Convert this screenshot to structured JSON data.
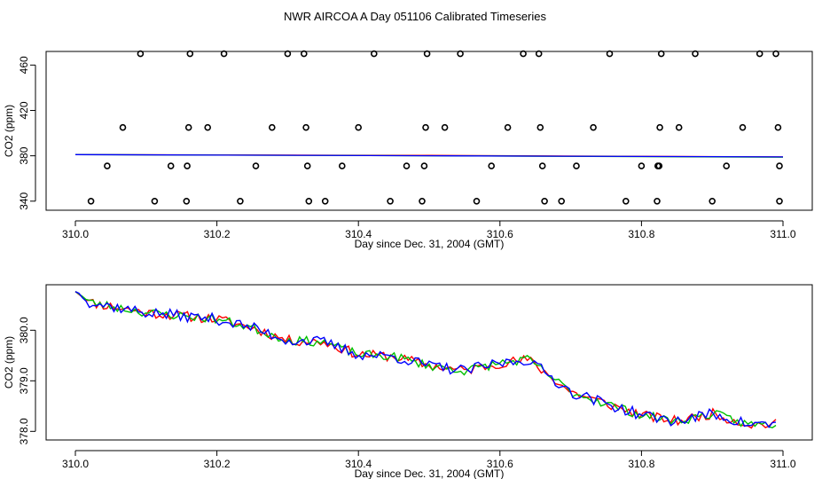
{
  "title": "NWR AIRCOA A  Day 051106  Calibrated Timeseries",
  "colors": {
    "red": "#ff0000",
    "green": "#00c000",
    "blue": "#0000ff",
    "black": "#000000"
  },
  "chart_data": [
    {
      "type": "scatter",
      "xlabel": "Day since Dec. 31, 2004 (GMT)",
      "ylabel": "CO2 (ppm)",
      "xlim": [
        310.0,
        311.0
      ],
      "ylim": [
        332,
        472
      ],
      "xticks": [
        310.0,
        310.2,
        310.4,
        310.6,
        310.8,
        311.0
      ],
      "xtick_labels": [
        "310.0",
        "310.2",
        "310.4",
        "310.6",
        "310.8",
        "311.0"
      ],
      "yticks": [
        340,
        380,
        420,
        460
      ],
      "ytick_labels": [
        "340",
        "380",
        "420",
        "460"
      ],
      "points": [
        [
          310.092,
          470
        ],
        [
          310.162,
          470
        ],
        [
          310.21,
          470
        ],
        [
          310.3,
          470
        ],
        [
          310.323,
          470
        ],
        [
          310.422,
          470
        ],
        [
          310.497,
          470
        ],
        [
          310.544,
          470
        ],
        [
          310.633,
          470
        ],
        [
          310.655,
          470
        ],
        [
          310.755,
          470
        ],
        [
          310.828,
          470
        ],
        [
          310.876,
          470
        ],
        [
          310.967,
          470
        ],
        [
          310.99,
          470
        ],
        [
          310.067,
          405
        ],
        [
          310.16,
          405
        ],
        [
          310.187,
          405
        ],
        [
          310.278,
          405
        ],
        [
          310.326,
          405
        ],
        [
          310.4,
          405
        ],
        [
          310.495,
          405
        ],
        [
          310.522,
          405
        ],
        [
          310.611,
          405
        ],
        [
          310.657,
          405
        ],
        [
          310.732,
          405
        ],
        [
          310.826,
          405
        ],
        [
          310.853,
          405
        ],
        [
          310.943,
          405
        ],
        [
          310.993,
          405
        ],
        [
          310.045,
          371
        ],
        [
          310.135,
          371
        ],
        [
          310.158,
          371
        ],
        [
          310.255,
          371
        ],
        [
          310.328,
          371
        ],
        [
          310.377,
          371
        ],
        [
          310.468,
          371
        ],
        [
          310.493,
          371
        ],
        [
          310.588,
          371
        ],
        [
          310.66,
          371
        ],
        [
          310.708,
          371
        ],
        [
          310.8,
          371
        ],
        [
          310.823,
          371
        ],
        [
          310.825,
          371
        ],
        [
          310.92,
          371
        ],
        [
          310.995,
          371
        ],
        [
          310.022,
          340
        ],
        [
          310.112,
          340
        ],
        [
          310.157,
          340
        ],
        [
          310.233,
          340
        ],
        [
          310.33,
          340
        ],
        [
          310.353,
          340
        ],
        [
          310.445,
          340
        ],
        [
          310.49,
          340
        ],
        [
          310.567,
          340
        ],
        [
          310.663,
          340
        ],
        [
          310.687,
          340
        ],
        [
          310.778,
          340
        ],
        [
          310.822,
          340
        ],
        [
          310.9,
          340
        ],
        [
          310.995,
          340
        ]
      ],
      "series": [
        {
          "name": "red",
          "x": [
            310.0,
            310.5,
            311.0
          ],
          "y": [
            381.0,
            380.3,
            379.0
          ]
        },
        {
          "name": "green",
          "x": [
            310.0,
            310.5,
            311.0
          ],
          "y": [
            381.0,
            380.0,
            378.8
          ]
        },
        {
          "name": "blue",
          "x": [
            310.0,
            310.5,
            311.0
          ],
          "y": [
            381.0,
            380.0,
            379.0
          ]
        }
      ]
    },
    {
      "type": "line",
      "xlabel": "Day since Dec. 31, 2004 (GMT)",
      "ylabel": "CO2 (ppm)",
      "xlim": [
        310.0,
        311.0
      ],
      "ylim": [
        377.83,
        380.9
      ],
      "xticks": [
        310.0,
        310.2,
        310.4,
        310.6,
        310.8,
        311.0
      ],
      "xtick_labels": [
        "310.0",
        "310.2",
        "310.4",
        "310.6",
        "310.8",
        "311.0"
      ],
      "yticks": [
        378.0,
        379.0,
        380.0
      ],
      "ytick_labels": [
        "378.0",
        "379.0",
        "380.0"
      ],
      "trend_x": [
        310.0,
        310.02,
        310.1,
        310.2,
        310.25,
        310.3,
        310.35,
        310.4,
        310.45,
        310.5,
        310.55,
        310.6,
        310.64,
        310.7,
        310.75,
        310.8,
        310.85,
        310.9,
        310.95,
        310.99
      ],
      "trend_y": [
        380.78,
        380.55,
        380.35,
        380.22,
        380.05,
        379.8,
        379.77,
        379.52,
        379.48,
        379.3,
        379.2,
        379.35,
        379.42,
        378.78,
        378.55,
        378.32,
        378.2,
        378.35,
        378.14,
        378.14
      ],
      "series": [
        {
          "name": "red",
          "color": "#ff0000",
          "noise_amplitude": 0.1,
          "seed": 11
        },
        {
          "name": "green",
          "color": "#00c000",
          "noise_amplitude": 0.09,
          "seed": 23
        },
        {
          "name": "blue",
          "color": "#0000ff",
          "noise_amplitude": 0.11,
          "seed": 37
        }
      ]
    }
  ]
}
